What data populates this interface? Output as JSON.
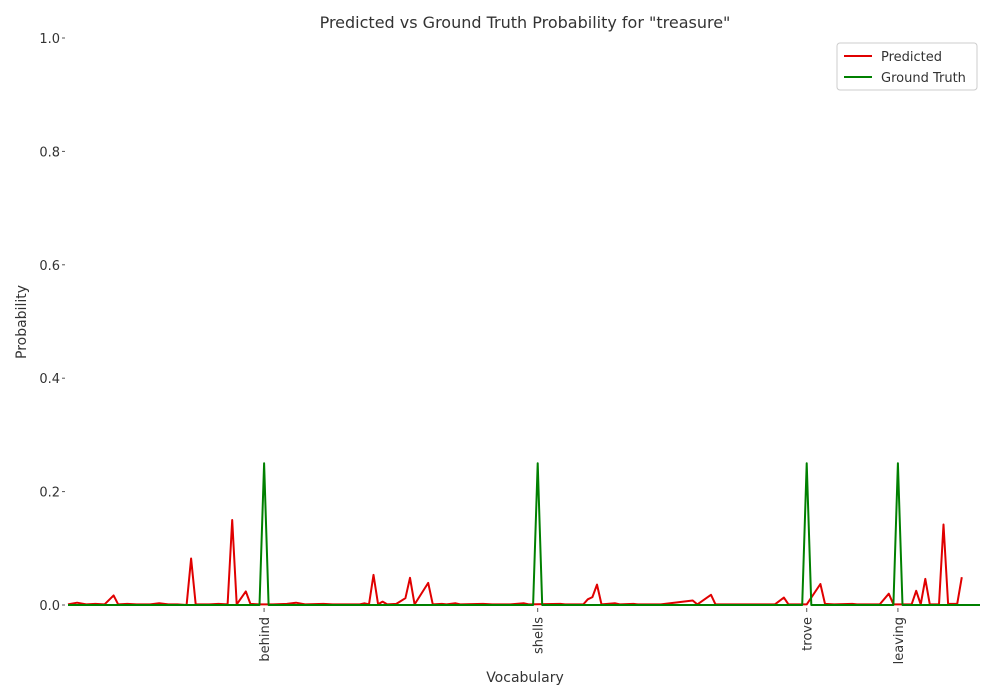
{
  "chart_data": {
    "type": "line",
    "title": "Predicted vs Ground Truth Probability for \"treasure\"",
    "xlabel": "Vocabulary",
    "ylabel": "Probability",
    "ylim": [
      0,
      1.0
    ],
    "yticks": [
      0.0,
      0.2,
      0.4,
      0.6,
      0.8,
      1.0
    ],
    "ytick_labels": [
      "0.0",
      "0.2",
      "0.4",
      "0.6",
      "0.8",
      "1.0"
    ],
    "xlim": [
      0,
      200
    ],
    "xticks": [
      {
        "x": 43,
        "label": "behind"
      },
      {
        "x": 103,
        "label": "shells"
      },
      {
        "x": 162,
        "label": "trove"
      },
      {
        "x": 182,
        "label": "leaving"
      }
    ],
    "grid": false,
    "legend": "top-right",
    "series": [
      {
        "name": "Predicted",
        "color": "#e00000",
        "points": [
          [
            0,
            0.001
          ],
          [
            2,
            0.004
          ],
          [
            4,
            0.001
          ],
          [
            6,
            0.002
          ],
          [
            8,
            0.001
          ],
          [
            10,
            0.017
          ],
          [
            11,
            0.001
          ],
          [
            13,
            0.002
          ],
          [
            15,
            0.001
          ],
          [
            18,
            0.001
          ],
          [
            20,
            0.003
          ],
          [
            22,
            0.001
          ],
          [
            24,
            0.001
          ],
          [
            26,
            0.0
          ],
          [
            27,
            0.082
          ],
          [
            28,
            0.001
          ],
          [
            31,
            0.001
          ],
          [
            33,
            0.002
          ],
          [
            35,
            0.001
          ],
          [
            36,
            0.15
          ],
          [
            37,
            0.001
          ],
          [
            39,
            0.024
          ],
          [
            40,
            0.002
          ],
          [
            42,
            0.001
          ],
          [
            45,
            0.001
          ],
          [
            48,
            0.002
          ],
          [
            50,
            0.004
          ],
          [
            52,
            0.001
          ],
          [
            56,
            0.002
          ],
          [
            58,
            0.001
          ],
          [
            64,
            0.001
          ],
          [
            65,
            0.003
          ],
          [
            66,
            0.001
          ],
          [
            67,
            0.053
          ],
          [
            68,
            0.001
          ],
          [
            69,
            0.006
          ],
          [
            70,
            0.001
          ],
          [
            72,
            0.002
          ],
          [
            74,
            0.012
          ],
          [
            75,
            0.048
          ],
          [
            76,
            0.001
          ],
          [
            79,
            0.039
          ],
          [
            80,
            0.001
          ],
          [
            82,
            0.002
          ],
          [
            83,
            0.001
          ],
          [
            85,
            0.003
          ],
          [
            86,
            0.001
          ],
          [
            91,
            0.002
          ],
          [
            93,
            0.001
          ],
          [
            97,
            0.001
          ],
          [
            100,
            0.003
          ],
          [
            101,
            0.001
          ],
          [
            108,
            0.002
          ],
          [
            109,
            0.001
          ],
          [
            113,
            0.001
          ],
          [
            114,
            0.01
          ],
          [
            115,
            0.014
          ],
          [
            116,
            0.036
          ],
          [
            117,
            0.001
          ],
          [
            120,
            0.003
          ],
          [
            121,
            0.001
          ],
          [
            124,
            0.002
          ],
          [
            125,
            0.001
          ],
          [
            130,
            0.001
          ],
          [
            137,
            0.008
          ],
          [
            138,
            0.001
          ],
          [
            141,
            0.018
          ],
          [
            142,
            0.001
          ],
          [
            148,
            0.001
          ],
          [
            152,
            0.001
          ],
          [
            155,
            0.001
          ],
          [
            157,
            0.013
          ],
          [
            158,
            0.001
          ],
          [
            162,
            0.001
          ],
          [
            165,
            0.037
          ],
          [
            166,
            0.002
          ],
          [
            168,
            0.001
          ],
          [
            172,
            0.002
          ],
          [
            173,
            0.001
          ],
          [
            178,
            0.001
          ],
          [
            180,
            0.02
          ],
          [
            181,
            0.001
          ],
          [
            183,
            0.001
          ],
          [
            185,
            0.001
          ],
          [
            186,
            0.025
          ],
          [
            187,
            0.001
          ],
          [
            188,
            0.046
          ],
          [
            189,
            0.001
          ],
          [
            191,
            0.001
          ],
          [
            192,
            0.142
          ],
          [
            193,
            0.002
          ],
          [
            195,
            0.002
          ],
          [
            196,
            0.049
          ]
        ]
      },
      {
        "name": "Ground Truth",
        "color": "#008000",
        "points": [
          [
            0,
            0
          ],
          [
            42,
            0
          ],
          [
            43,
            0.25
          ],
          [
            44,
            0
          ],
          [
            102,
            0
          ],
          [
            103,
            0.25
          ],
          [
            104,
            0
          ],
          [
            161,
            0
          ],
          [
            162,
            0.25
          ],
          [
            163,
            0
          ],
          [
            181,
            0
          ],
          [
            182,
            0.25
          ],
          [
            183,
            0
          ],
          [
            200,
            0
          ]
        ]
      }
    ]
  }
}
